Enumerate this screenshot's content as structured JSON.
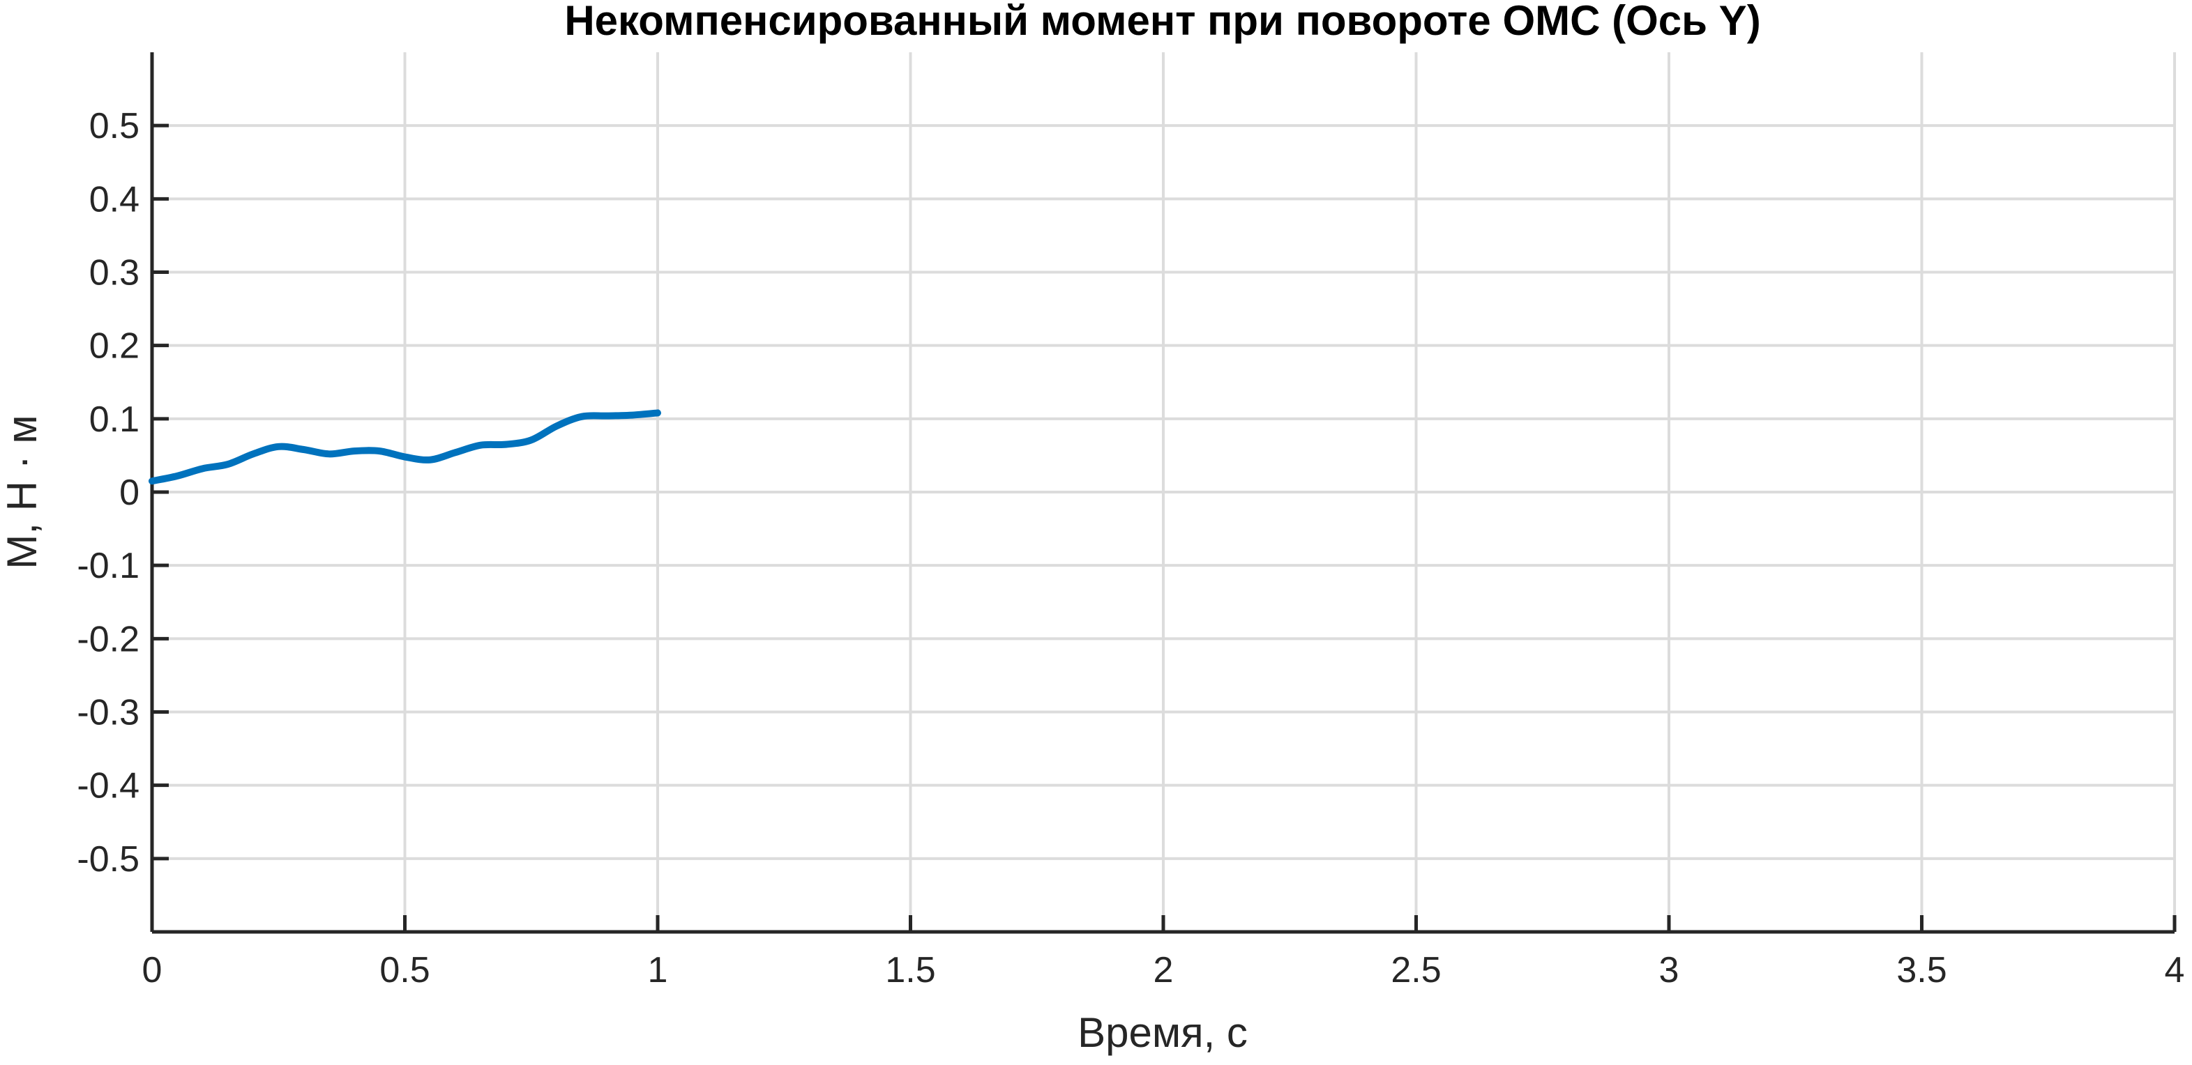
{
  "chart_data": {
    "type": "line",
    "title": "Некомпенсированный момент при повороте ОМС (Ось Y)",
    "xlabel": "Время, с",
    "ylabel": "M, Н · м",
    "xlim": [
      0,
      4
    ],
    "ylim": [
      -0.6,
      0.6
    ],
    "x_ticks": [
      0,
      0.5,
      1,
      1.5,
      2,
      2.5,
      3,
      3.5,
      4
    ],
    "x_tick_labels": [
      "0",
      "0.5",
      "1",
      "1.5",
      "2",
      "2.5",
      "3",
      "3.5",
      "4"
    ],
    "y_ticks": [
      0.5,
      0.4,
      0.3,
      0.2,
      0.1,
      0,
      -0.1,
      -0.2,
      -0.3,
      -0.4,
      -0.5
    ],
    "y_tick_labels": [
      "0.5",
      "0.4",
      "0.3",
      "0.2",
      "0.1",
      "0",
      "-0.1",
      "-0.2",
      "-0.3",
      "-0.4",
      "-0.5"
    ],
    "grid": true,
    "series": [
      {
        "color": "#0072bd",
        "x": [
          0,
          0.05,
          0.1,
          0.15,
          0.2,
          0.25,
          0.3,
          0.35,
          0.4,
          0.45,
          0.5,
          0.55,
          0.6,
          0.65,
          0.7,
          0.75,
          0.8,
          0.85,
          0.9,
          0.95,
          1.0
        ],
        "y": [
          0.015,
          0.022,
          0.032,
          0.038,
          0.052,
          0.062,
          0.058,
          0.052,
          0.056,
          0.056,
          0.048,
          0.044,
          0.054,
          0.064,
          0.065,
          0.071,
          0.09,
          0.103,
          0.104,
          0.105,
          0.108
        ]
      }
    ]
  }
}
